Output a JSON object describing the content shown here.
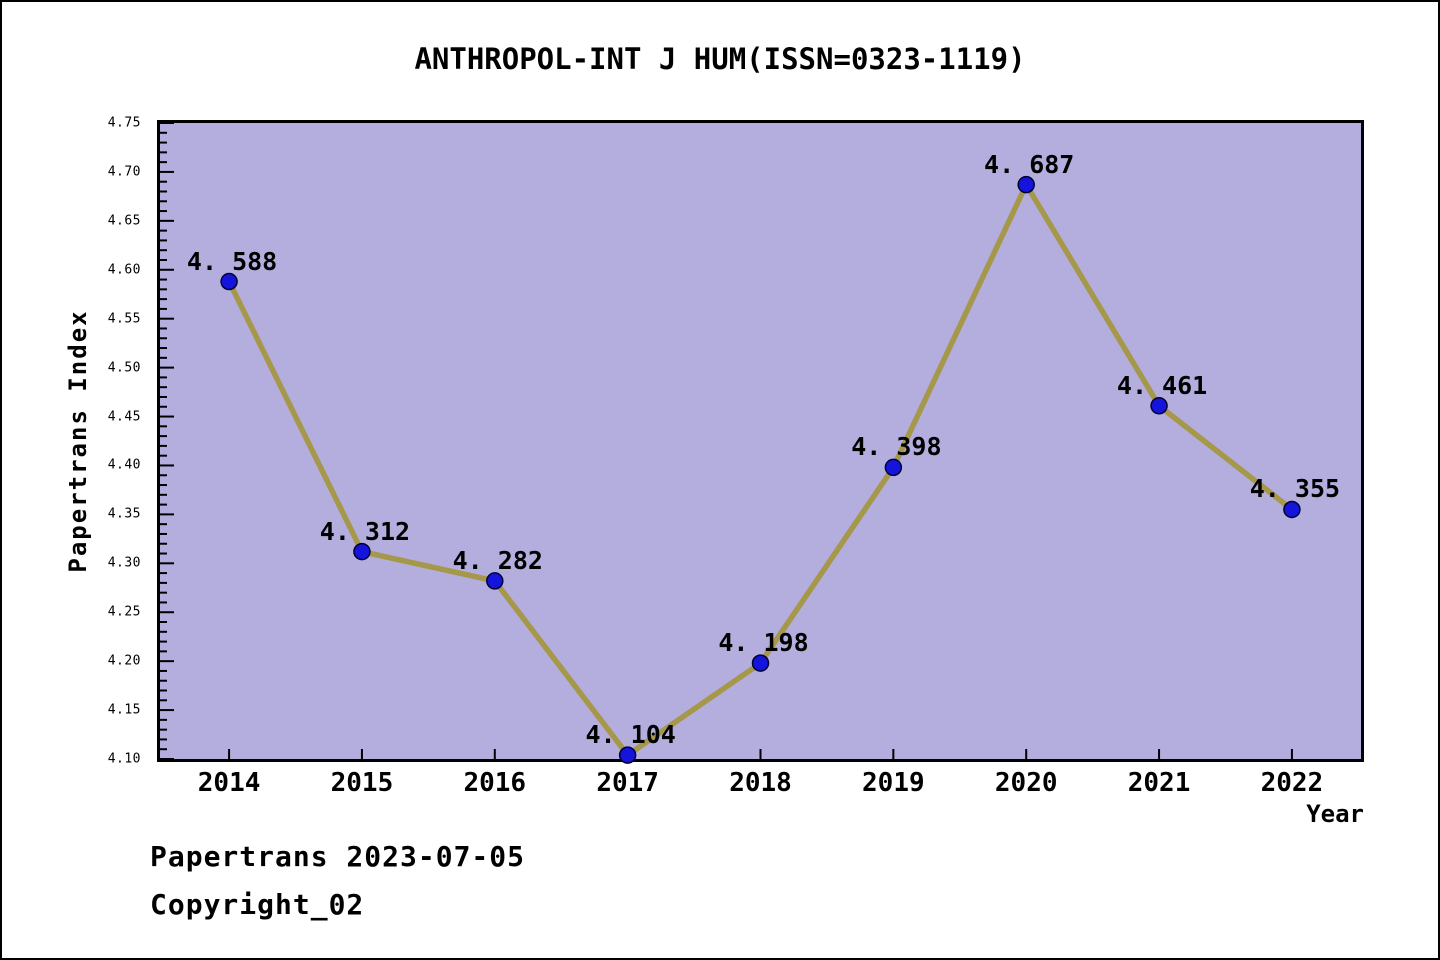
{
  "page": {
    "title": "ANTHROPOL-INT J HUM(ISSN=0323-1119)",
    "footer_line1": "Papertrans 2023-07-05",
    "footer_line2": "Copyright_02"
  },
  "chart_data": {
    "type": "line",
    "title": "ANTHROPOL-INT J HUM(ISSN=0323-1119)",
    "xlabel": "Year",
    "ylabel": "Papertrans Index",
    "x": [
      2014,
      2015,
      2016,
      2017,
      2018,
      2019,
      2020,
      2021,
      2022
    ],
    "x_tick_labels": [
      "2014",
      "2015",
      "2016",
      "2017",
      "2018",
      "2019",
      "2020",
      "2021",
      "2022"
    ],
    "series": [
      {
        "name": "Papertrans Index",
        "values": [
          4.588,
          4.312,
          4.282,
          4.104,
          4.198,
          4.398,
          4.687,
          4.461,
          4.355
        ]
      }
    ],
    "point_labels": [
      "4. 588",
      "4. 312",
      "4. 282",
      "4. 104",
      "4. 198",
      "4. 398",
      "4. 687",
      "4. 461",
      "4. 355"
    ],
    "xlim": [
      2013.48,
      2022.52
    ],
    "ylim": [
      4.1,
      4.75
    ],
    "y_major_tick_step": 0.05,
    "y_minor_tick_step": 0.01,
    "y_tick_labels": [
      "4.10",
      "4.15",
      "4.20",
      "4.25",
      "4.30",
      "4.35",
      "4.40",
      "4.45",
      "4.50",
      "4.55",
      "4.60",
      "4.65",
      "4.70",
      "4.75"
    ],
    "grid": false,
    "legend": null,
    "colors": {
      "line": "#a6984a",
      "marker_fill": "#1414dd",
      "marker_edge": "#000033",
      "plot_bg": "#b4aede",
      "axis": "#000000",
      "text": "#000000"
    }
  }
}
